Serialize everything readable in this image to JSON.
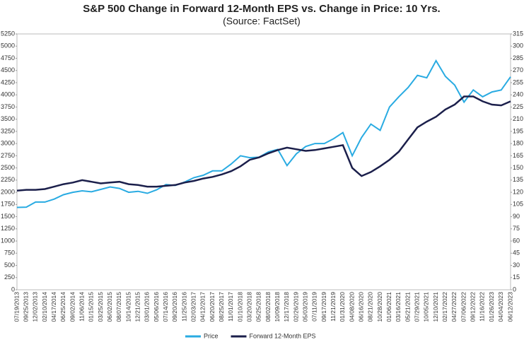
{
  "chart_data": {
    "type": "line",
    "title": "S&P 500 Change in Forward 12-Month EPS vs. Change in Price: 10 Yrs.",
    "subtitle": "(Source: FactSet)",
    "categories": [
      "07/19/2013",
      "09/25/2013",
      "12/02/2013",
      "02/10/2014",
      "04/17/2014",
      "06/25/2014",
      "09/02/2014",
      "11/06/2014",
      "01/15/2015",
      "03/25/2015",
      "06/02/2015",
      "08/07/2015",
      "10/14/2015",
      "12/21/2015",
      "03/01/2016",
      "05/06/2016",
      "07/14/2016",
      "09/20/2016",
      "11/25/2016",
      "02/03/2017",
      "04/12/2017",
      "06/20/2017",
      "08/25/2017",
      "11/01/2017",
      "01/10/2018",
      "03/20/2018",
      "05/25/2018",
      "08/02/2018",
      "10/09/2018",
      "12/17/2018",
      "02/26/2019",
      "05/03/2019",
      "07/11/2019",
      "09/17/2019",
      "11/21/2019",
      "01/31/2020",
      "04/08/2020",
      "06/16/2020",
      "08/21/2020",
      "10/28/2020",
      "01/06/2021",
      "03/16/2021",
      "05/21/2021",
      "07/29/2021",
      "10/05/2021",
      "12/10/2021",
      "02/17/2022",
      "04/27/2022",
      "07/06/2022",
      "09/12/2022",
      "11/16/2022",
      "01/26/2023",
      "04/04/2023",
      "06/12/2023"
    ],
    "series": [
      {
        "name": "Price",
        "color": "#29abe2",
        "values": [
          1690,
          1695,
          1800,
          1800,
          1860,
          1950,
          2000,
          2030,
          2010,
          2060,
          2110,
          2080,
          2000,
          2020,
          1980,
          2050,
          2160,
          2140,
          2210,
          2300,
          2350,
          2440,
          2440,
          2580,
          2750,
          2710,
          2720,
          2830,
          2880,
          2550,
          2790,
          2940,
          3000,
          3000,
          3100,
          3225,
          2750,
          3125,
          3400,
          3270,
          3750,
          3960,
          4150,
          4400,
          4350,
          4700,
          4380,
          4200,
          3850,
          4100,
          3960,
          4060,
          4100,
          4370
        ]
      },
      {
        "name": "Forward 12-Month EPS",
        "color": "#1b1f4b",
        "axis": "y2",
        "values": [
          122,
          123,
          123,
          124,
          127,
          130,
          132,
          135,
          133,
          131,
          132,
          133,
          130,
          129,
          127,
          127,
          128,
          129,
          132,
          134,
          137,
          139,
          142,
          146,
          152,
          160,
          163,
          168,
          172,
          175,
          173,
          171,
          172,
          174,
          176,
          178,
          150,
          140,
          145,
          152,
          160,
          170,
          185,
          200,
          207,
          213,
          222,
          228,
          238,
          238,
          232,
          228,
          227,
          232
        ]
      }
    ],
    "ylim": [
      0,
      5250
    ],
    "yticks": [
      0,
      250,
      500,
      750,
      1000,
      1250,
      1500,
      1750,
      2000,
      2250,
      2500,
      2750,
      3000,
      3250,
      3500,
      3750,
      4000,
      4250,
      4500,
      4750,
      5000,
      5250
    ],
    "y2lim": [
      0,
      315
    ],
    "y2ticks": [
      0,
      15,
      30,
      45,
      60,
      75,
      90,
      105,
      120,
      135,
      150,
      165,
      180,
      195,
      210,
      225,
      240,
      255,
      270,
      285,
      300,
      315
    ],
    "grid": false
  }
}
